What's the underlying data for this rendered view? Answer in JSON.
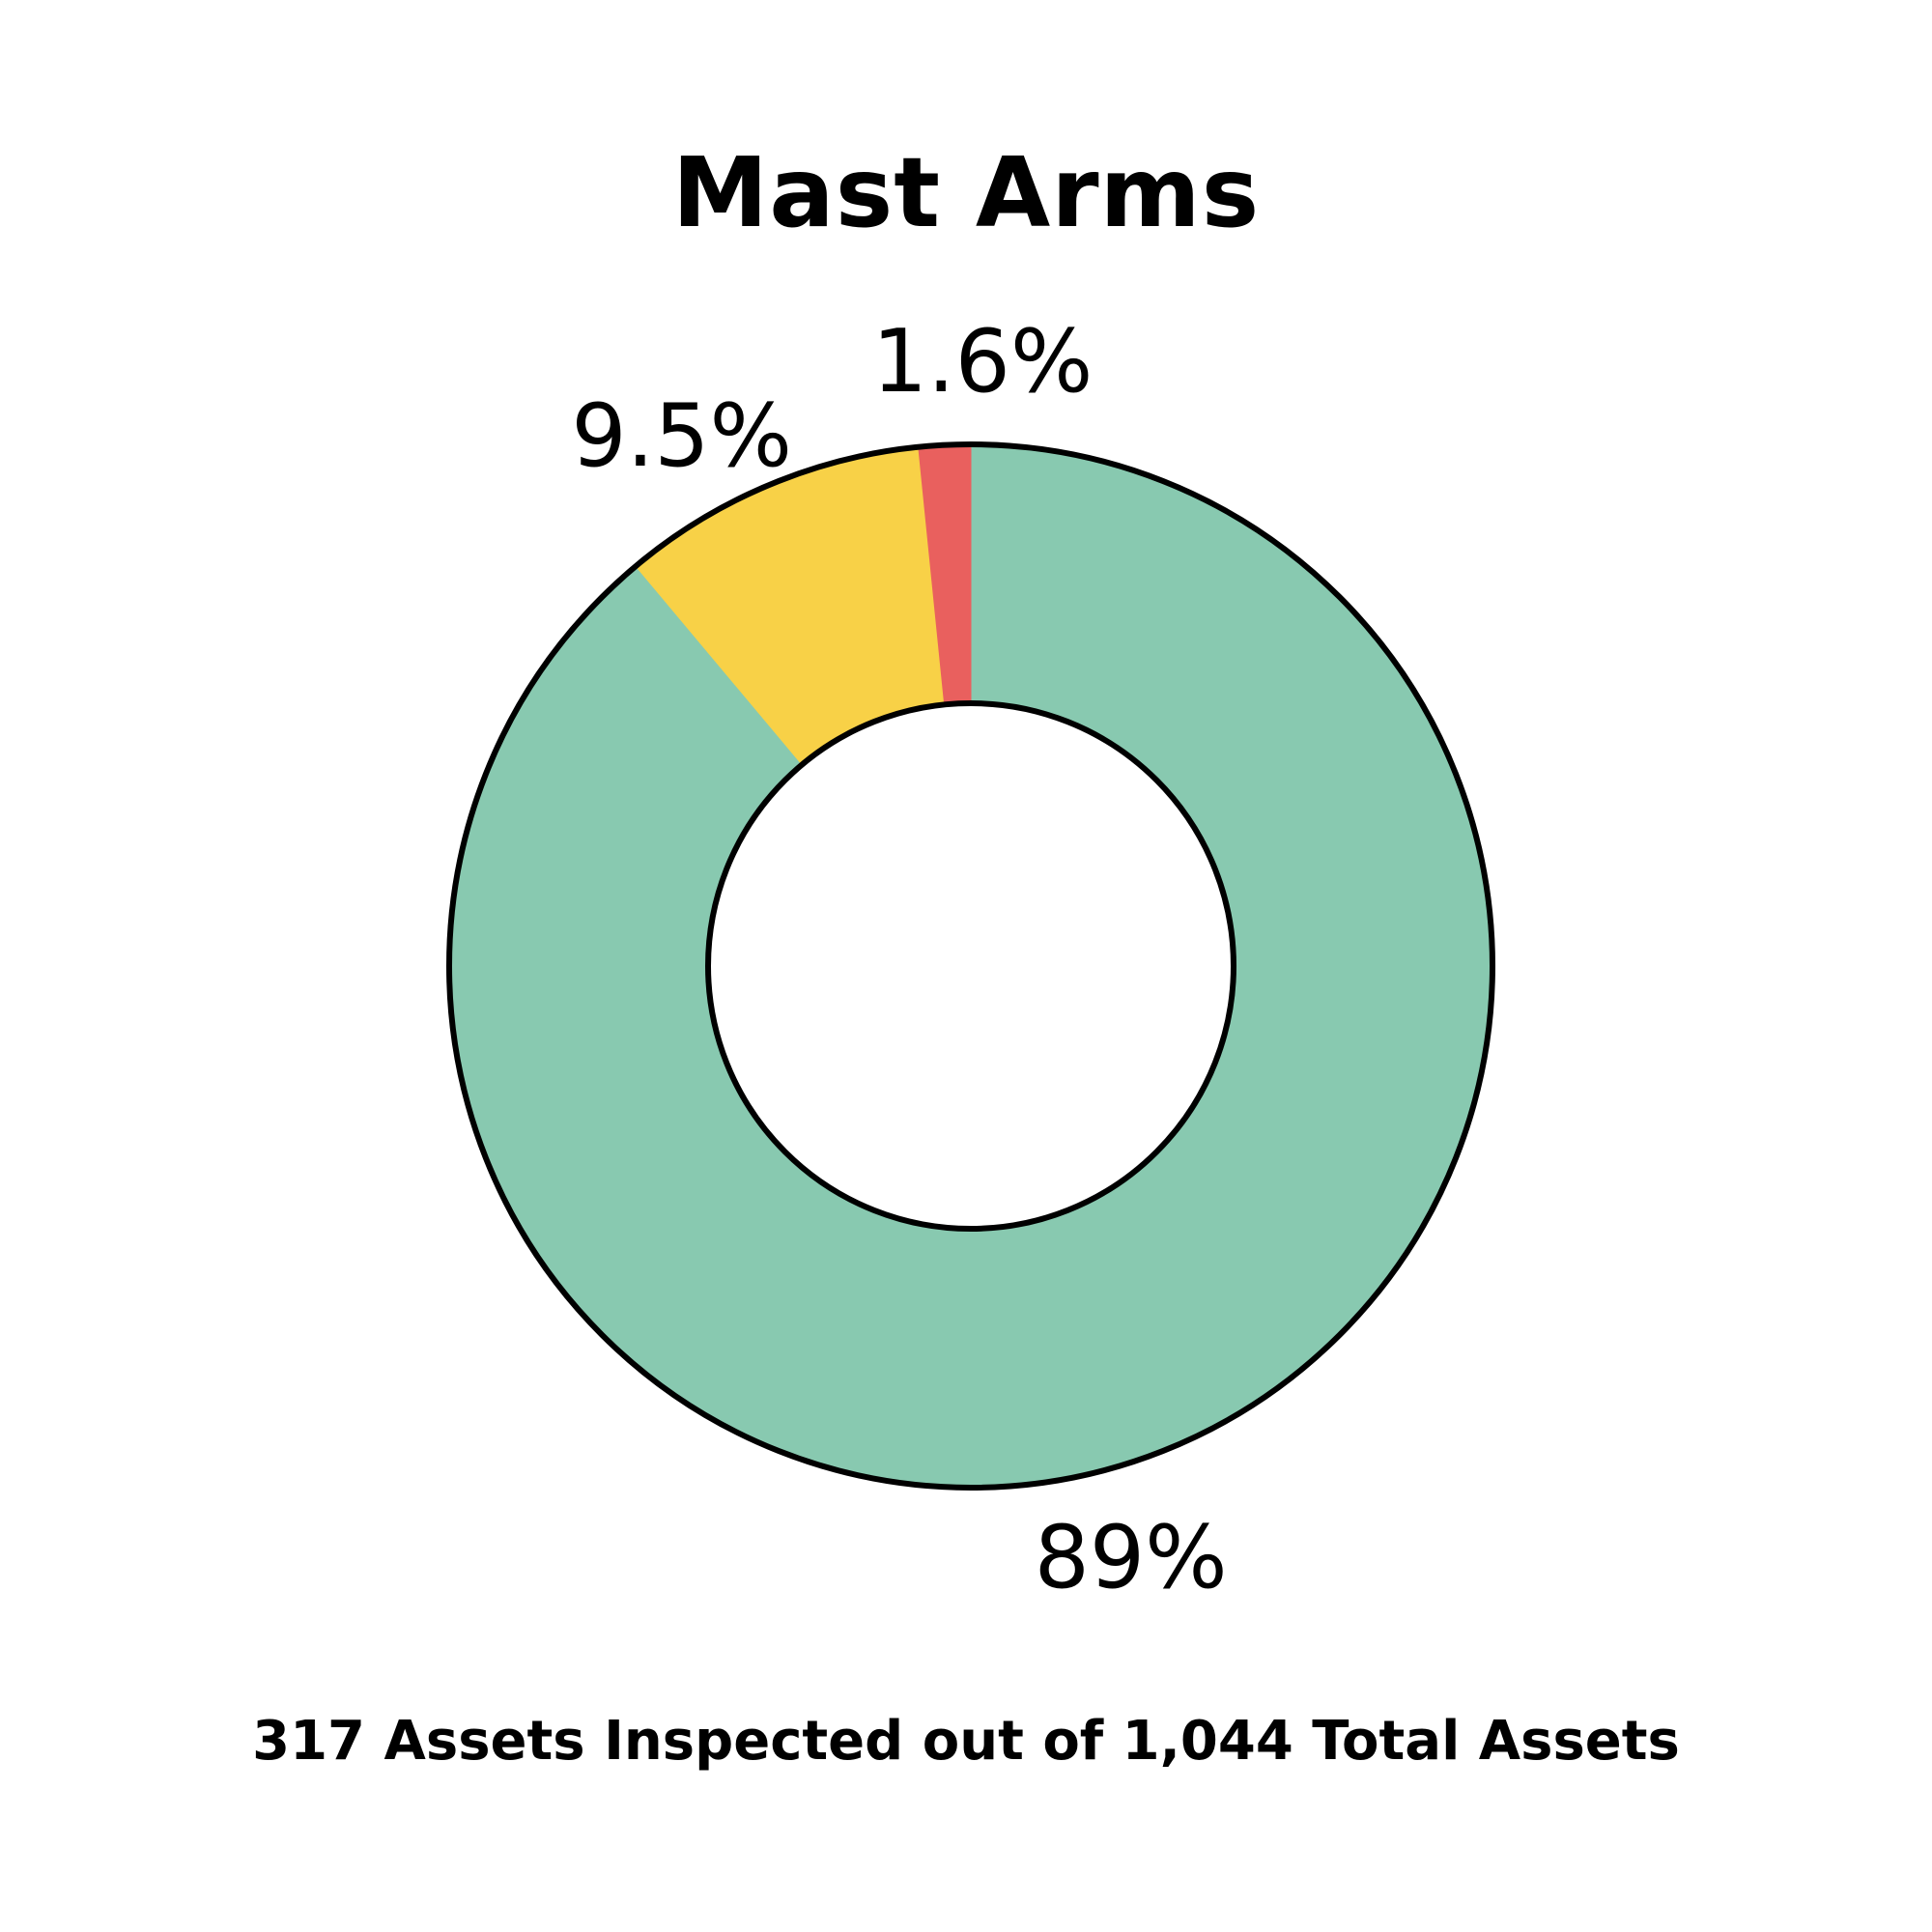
{
  "chart_data": {
    "type": "pie",
    "title": "Mast Arms",
    "donut": true,
    "start_angle_deg": 0,
    "direction": "clockwise",
    "slices": [
      {
        "label": "",
        "value": 88.9,
        "display": "89%",
        "color": "#88C9B0"
      },
      {
        "label": "",
        "value": 9.5,
        "display": "9.5%",
        "color": "#F8D147"
      },
      {
        "label": "",
        "value": 1.6,
        "display": "1.6%",
        "color": "#E9605E"
      }
    ]
  },
  "footer": "317 Assets Inspected out of 1,044 Total Assets"
}
